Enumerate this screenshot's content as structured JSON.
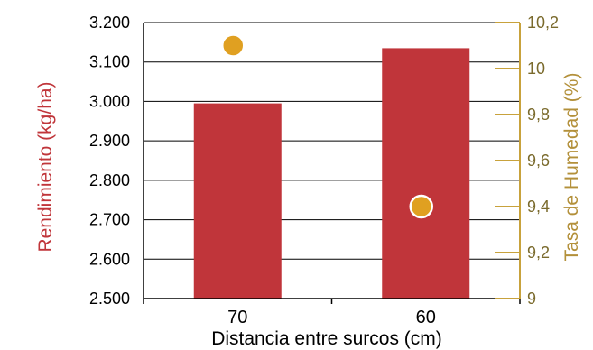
{
  "chart_data": {
    "type": "bar",
    "categories": [
      "70",
      "60"
    ],
    "xlabel": "Distancia entre surcos (cm)",
    "ylabel": "Rendimiento (kg/ha)",
    "y2label": "Tasa de Humedad (%)",
    "ylim": [
      2500,
      3200
    ],
    "y2lim": [
      9,
      10.2
    ],
    "yticks": [
      "2.500",
      "2.600",
      "2.700",
      "2.800",
      "2.900",
      "3.000",
      "3.100",
      "3.200"
    ],
    "y2ticks": [
      "9",
      "9,2",
      "9,4",
      "9,6",
      "9,8",
      "10",
      "10,2"
    ],
    "grid": true,
    "series": [
      {
        "axis": "left",
        "kind": "bar",
        "values": [
          2995,
          3135
        ],
        "color": "#c0353a"
      },
      {
        "axis": "right",
        "kind": "scatter",
        "values": [
          10.1,
          9.4
        ],
        "color": "#e0a021"
      }
    ],
    "colors": {
      "bar": "#c0353a",
      "point": "#e0a021",
      "right_axis": "#c8a23c",
      "right_label": "#b3903a",
      "left_label": "#c0353a"
    }
  }
}
